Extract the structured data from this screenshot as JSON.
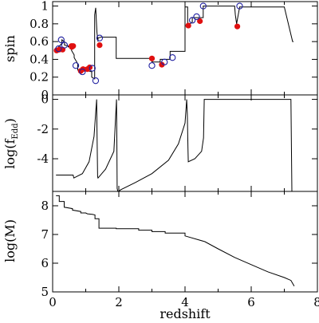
{
  "chart_data": [
    {
      "type": "line",
      "ylabel": "spin",
      "xlim": [
        0,
        8
      ],
      "ylim": [
        0,
        1.05
      ],
      "yticks": [
        0,
        0.2,
        0.4,
        0.6,
        0.8,
        1
      ],
      "ytick_labels": [
        "0",
        "0.2",
        "0.4",
        "0.6",
        "0.8",
        "1"
      ],
      "grid": false,
      "series": [
        {
          "style": "step-line",
          "x": [
            0.1,
            0.12,
            0.18,
            0.18,
            0.28,
            0.28,
            0.36,
            0.36,
            0.47,
            0.47,
            0.57,
            0.57,
            0.65,
            0.65,
            0.76,
            0.76,
            0.87,
            0.87,
            0.98,
            0.98,
            1.08,
            1.08,
            1.18,
            1.18,
            1.27,
            1.27,
            1.3,
            1.34,
            1.37,
            1.37,
            1.45,
            1.45,
            1.92,
            1.92,
            3.0,
            3.0,
            3.25,
            3.25,
            3.55,
            3.55,
            4.0,
            4.0,
            4.08,
            4.08,
            4.22,
            4.22,
            4.55,
            4.55,
            5.5,
            5.5,
            5.52,
            5.56,
            5.65,
            5.65,
            7.0,
            7.25,
            7.28
          ],
          "y": [
            0.5,
            0.51,
            0.52,
            0.54,
            0.58,
            0.62,
            0.6,
            0.56,
            0.55,
            0.54,
            0.55,
            0.5,
            0.45,
            0.42,
            0.35,
            0.28,
            0.25,
            0.29,
            0.3,
            0.27,
            0.3,
            0.27,
            0.26,
            0.2,
            0.18,
            0.9,
            0.98,
            0.7,
            0.6,
            0.64,
            0.65,
            0.65,
            0.65,
            0.41,
            0.41,
            0.37,
            0.37,
            0.4,
            0.4,
            0.49,
            0.49,
            0.99,
            0.99,
            0.78,
            0.82,
            0.87,
            0.87,
            1.0,
            1.0,
            0.99,
            0.9,
            0.8,
            0.99,
            0.99,
            0.99,
            0.6,
            0.6
          ]
        },
        {
          "style": "filled-red-dots",
          "x": [
            0.12,
            0.2,
            0.3,
            0.57,
            0.58,
            0.62,
            0.85,
            0.92,
            1.05,
            1.12,
            1.42,
            3.0,
            3.3,
            4.1,
            4.45,
            5.58
          ],
          "y": [
            0.5,
            0.51,
            0.51,
            0.55,
            0.54,
            0.55,
            0.27,
            0.29,
            0.29,
            0.31,
            0.56,
            0.41,
            0.34,
            0.78,
            0.83,
            0.77
          ]
        },
        {
          "style": "open-blue-circles",
          "x": [
            0.18,
            0.26,
            0.36,
            0.7,
            0.9,
            1.2,
            1.3,
            1.42,
            3.0,
            3.38,
            3.62,
            4.22,
            4.35,
            4.55,
            5.65
          ],
          "y": [
            0.52,
            0.62,
            0.56,
            0.33,
            0.26,
            0.3,
            0.16,
            0.64,
            0.33,
            0.37,
            0.42,
            0.84,
            0.88,
            1.0,
            1.0
          ]
        }
      ]
    },
    {
      "type": "line",
      "ylabel": "log(f",
      "ylabel_subscript": "Edd",
      "ylabel_close": ")",
      "xlim": [
        0,
        8
      ],
      "ylim": [
        -6.2,
        0.3
      ],
      "yticks": [
        -4,
        -2,
        0
      ],
      "ytick_labels": [
        "-4",
        "-2",
        "0"
      ],
      "grid": false,
      "series": [
        {
          "x": [
            0.1,
            0.62,
            0.64,
            0.9,
            1.1,
            1.25,
            1.3,
            1.33,
            1.34,
            1.36,
            1.37,
            1.6,
            1.85,
            1.93,
            1.94,
            1.95,
            1.97,
            2.0,
            2.05,
            2.5,
            3.0,
            3.5,
            3.8,
            4.0,
            4.05,
            4.07,
            4.09,
            4.1,
            4.3,
            4.5,
            4.56,
            4.58,
            4.6,
            7.2,
            7.23,
            7.28
          ],
          "y": [
            -5.1,
            -5.1,
            -5.3,
            -5.0,
            -4.2,
            -2.5,
            -0.9,
            0.0,
            -2.0,
            -5.2,
            -5.3,
            -4.7,
            -3.5,
            0.0,
            -2.5,
            -6.0,
            -6.2,
            -6.2,
            -6.1,
            -5.6,
            -5.0,
            -4.1,
            -3.0,
            -1.6,
            0.0,
            -1.0,
            -3.3,
            -4.2,
            -4.0,
            -3.5,
            -2.6,
            0.0,
            0.0,
            0.0,
            -6.2,
            -6.2
          ]
        }
      ]
    },
    {
      "type": "line",
      "ylabel": "log(M)",
      "xlabel": "redshift",
      "xlim": [
        0,
        8
      ],
      "ylim": [
        5,
        8.5
      ],
      "yticks": [
        5,
        6,
        7,
        8
      ],
      "ytick_labels": [
        "5",
        "6",
        "7",
        "8"
      ],
      "xticks": [
        0,
        2,
        4,
        6,
        8
      ],
      "xtick_labels": [
        "0",
        "2",
        "4",
        "6",
        "8"
      ],
      "grid": false,
      "series": [
        {
          "x": [
            0.1,
            0.2,
            0.2,
            0.35,
            0.35,
            0.6,
            0.6,
            0.85,
            0.85,
            1.0,
            1.05,
            1.2,
            1.28,
            1.28,
            1.4,
            1.4,
            1.92,
            1.92,
            2.6,
            2.6,
            3.0,
            3.0,
            3.4,
            3.4,
            4.0,
            4.0,
            4.6,
            5.0,
            5.5,
            6.0,
            6.5,
            7.0,
            7.2,
            7.3
          ],
          "y": [
            8.35,
            8.35,
            8.15,
            8.15,
            7.95,
            7.9,
            7.85,
            7.8,
            7.75,
            7.75,
            7.72,
            7.7,
            7.68,
            7.55,
            7.55,
            7.22,
            7.22,
            7.2,
            7.2,
            7.15,
            7.15,
            7.1,
            7.1,
            7.05,
            7.05,
            6.95,
            6.75,
            6.5,
            6.2,
            5.95,
            5.7,
            5.5,
            5.4,
            5.2
          ]
        }
      ]
    }
  ]
}
